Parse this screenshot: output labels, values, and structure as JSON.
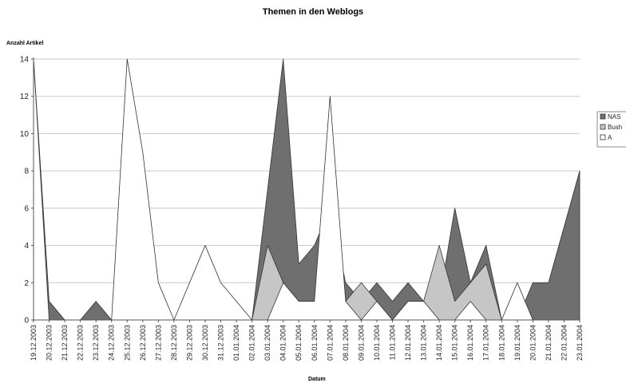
{
  "chart_data": {
    "type": "area",
    "title": "Themen in den Weblogs",
    "xlabel": "Datum",
    "ylabel": "Anzahl Artikel",
    "ylim": [
      0,
      14
    ],
    "yticks": [
      0,
      2,
      4,
      6,
      8,
      10,
      12,
      14
    ],
    "grid": true,
    "legend_position": "right",
    "categories": [
      "19.12.2003",
      "20.12.2003",
      "21.12.2003",
      "22.12.2003",
      "23.12.2003",
      "24.12.2003",
      "25.12.2003",
      "26.12.2003",
      "27.12.2003",
      "28.12.2003",
      "29.12.2003",
      "30.12.2003",
      "31.12.2003",
      "01.01.2004",
      "02.01.2004",
      "03.01.2004",
      "04.01.2004",
      "05.01.2004",
      "06.01.2004",
      "07.01.2004",
      "08.01.2004",
      "09.01.2004",
      "10.01.2004",
      "11.01.2004",
      "12.01.2004",
      "13.01.2004",
      "14.01.2004",
      "15.01.2004",
      "16.01.2004",
      "17.01.2004",
      "18.01.2004",
      "19.01.2004",
      "20.01.2004",
      "21.01.2004",
      "22.01.2004",
      "23.01.2004"
    ],
    "series": [
      {
        "name": "NAS",
        "color": "#6f6f6f",
        "values": [
          14,
          1,
          0,
          0,
          1,
          0,
          0,
          0,
          0,
          0,
          0,
          0,
          0,
          0,
          0,
          7,
          14,
          3,
          4,
          6,
          2,
          1,
          2,
          1,
          2,
          1,
          1,
          6,
          2,
          4,
          0,
          0,
          2,
          2,
          5,
          8
        ]
      },
      {
        "name": "Bush",
        "color": "#c6c6c6",
        "values": [
          0,
          0,
          0,
          0,
          0,
          0,
          0,
          0,
          0,
          0,
          0,
          0,
          0,
          0,
          0,
          4,
          2,
          1,
          1,
          2,
          1,
          2,
          1,
          0,
          1,
          1,
          4,
          1,
          2,
          3,
          0,
          0,
          0,
          0,
          0,
          0
        ]
      },
      {
        "name": "A",
        "color": "#ffffff",
        "values": [
          14,
          0,
          0,
          0,
          0,
          0,
          14,
          9,
          2,
          0,
          2,
          4,
          2,
          1,
          0,
          0,
          2,
          1,
          1,
          12,
          1,
          0,
          1,
          0,
          1,
          1,
          0,
          0,
          1,
          0,
          0,
          2,
          0,
          0,
          0,
          0
        ]
      }
    ]
  }
}
